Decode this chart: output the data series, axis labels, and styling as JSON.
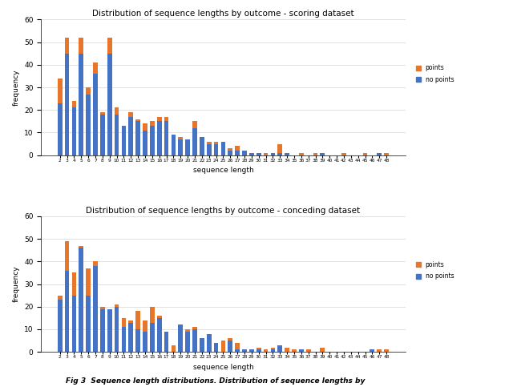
{
  "title1": "Distribution of sequence lengths by outcome - scoring dataset",
  "title2": "Distribution of sequence lengths by outcome - conceding dataset",
  "xlabel": "sequence length",
  "ylabel": "frequency",
  "color_points": "#E8762A",
  "color_nopoints": "#4472C4",
  "scoring": {
    "lengths": [
      2,
      3,
      4,
      5,
      6,
      7,
      8,
      9,
      10,
      11,
      12,
      13,
      14,
      15,
      16,
      17,
      18,
      19,
      20,
      21,
      22,
      23,
      24,
      25,
      26,
      27,
      28,
      29,
      30,
      31,
      32,
      33,
      34,
      35,
      36,
      37,
      38,
      39,
      40,
      41,
      42,
      43,
      44,
      45,
      46,
      47,
      48
    ],
    "points": [
      11,
      7,
      3,
      7,
      3,
      5,
      1,
      7,
      3,
      0,
      2,
      1,
      3,
      2,
      2,
      2,
      0,
      1,
      0,
      3,
      0,
      1,
      1,
      0,
      1,
      2,
      0,
      0,
      0,
      1,
      0,
      4,
      0,
      0,
      1,
      0,
      1,
      0,
      0,
      0,
      1,
      0,
      0,
      1,
      0,
      0,
      1
    ],
    "nopoints": [
      23,
      45,
      21,
      45,
      27,
      36,
      18,
      45,
      18,
      13,
      17,
      15,
      11,
      13,
      15,
      15,
      9,
      7,
      7,
      12,
      8,
      5,
      5,
      6,
      2,
      2,
      2,
      1,
      1,
      0,
      1,
      1,
      1,
      0,
      0,
      0,
      0,
      1,
      0,
      0,
      0,
      0,
      0,
      0,
      0,
      1,
      0
    ]
  },
  "conceding": {
    "lengths": [
      2,
      3,
      4,
      5,
      6,
      7,
      8,
      9,
      10,
      11,
      12,
      13,
      14,
      15,
      16,
      17,
      18,
      19,
      20,
      21,
      22,
      23,
      24,
      25,
      26,
      27,
      28,
      29,
      30,
      31,
      32,
      33,
      34,
      35,
      36,
      37,
      38,
      39,
      40,
      41,
      42,
      43,
      44,
      45,
      46,
      47,
      48
    ],
    "points": [
      2,
      13,
      10,
      1,
      12,
      2,
      1,
      0,
      1,
      4,
      1,
      8,
      5,
      7,
      1,
      0,
      3,
      0,
      1,
      1,
      0,
      0,
      0,
      5,
      1,
      3,
      0,
      0,
      1,
      1,
      1,
      0,
      2,
      1,
      0,
      1,
      0,
      2,
      0,
      0,
      0,
      0,
      0,
      0,
      0,
      1,
      1
    ],
    "nopoints": [
      23,
      36,
      25,
      46,
      25,
      38,
      19,
      19,
      20,
      11,
      13,
      10,
      9,
      13,
      15,
      9,
      0,
      12,
      9,
      10,
      6,
      8,
      4,
      0,
      5,
      1,
      1,
      1,
      1,
      0,
      1,
      3,
      0,
      0,
      1,
      0,
      0,
      0,
      0,
      0,
      0,
      0,
      0,
      0,
      1,
      0,
      0
    ]
  },
  "caption": "Fig 3  Sequence length distributions. Distribution of sequence lengths by"
}
